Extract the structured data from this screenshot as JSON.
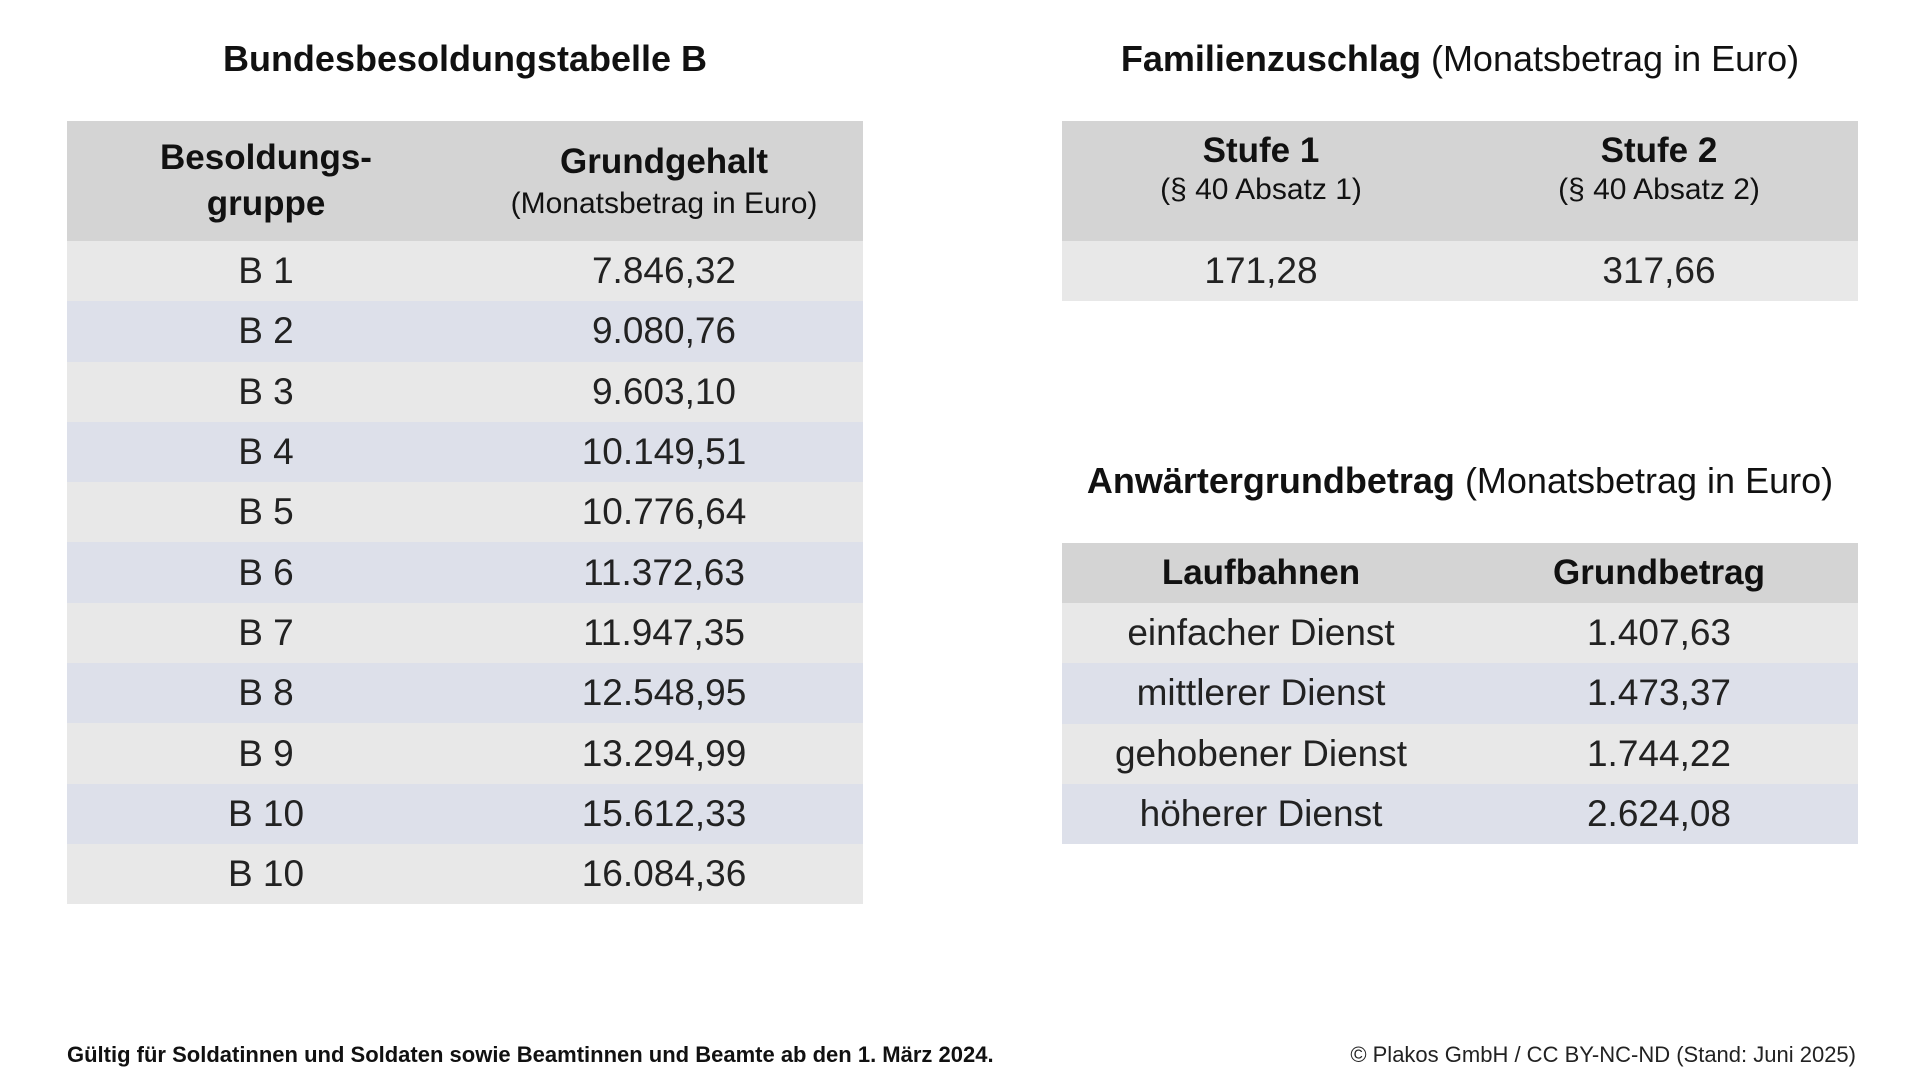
{
  "besoldung": {
    "title": "Bundesbesoldungstabelle B",
    "header_col1": "Besoldungs-\ngruppe",
    "header_col2": "Grundgehalt",
    "header_col2_sub": "(Monatsbetrag in Euro)",
    "rows": [
      {
        "group": "B 1",
        "value": "7.846,32"
      },
      {
        "group": "B 2",
        "value": "9.080,76"
      },
      {
        "group": "B 3",
        "value": "9.603,10"
      },
      {
        "group": "B 4",
        "value": "10.149,51"
      },
      {
        "group": "B 5",
        "value": "10.776,64"
      },
      {
        "group": "B 6",
        "value": "11.372,63"
      },
      {
        "group": "B 7",
        "value": "11.947,35"
      },
      {
        "group": "B 8",
        "value": "12.548,95"
      },
      {
        "group": "B 9",
        "value": "13.294,99"
      },
      {
        "group": "B 10",
        "value": "15.612,33"
      },
      {
        "group": "B 10",
        "value": "16.084,36"
      }
    ]
  },
  "familienzuschlag": {
    "title_bold": "Familienzuschlag",
    "title_light": "(Monatsbetrag in Euro)",
    "col1": "Stufe 1",
    "col1_sub": "(§ 40 Absatz 1)",
    "col2": "Stufe 2",
    "col2_sub": "(§ 40 Absatz 2)",
    "value1": "171,28",
    "value2": "317,66"
  },
  "anwaerter": {
    "title_bold": "Anwärtergrundbetrag",
    "title_light": "(Monatsbetrag in Euro)",
    "col1": "Laufbahnen",
    "col2": "Grundbetrag",
    "rows": [
      {
        "laufbahn": "einfacher Dienst",
        "betrag": "1.407,63"
      },
      {
        "laufbahn": "mittlerer Dienst",
        "betrag": "1.473,37"
      },
      {
        "laufbahn": "gehobener Dienst",
        "betrag": "1.744,22"
      },
      {
        "laufbahn": "höherer Dienst",
        "betrag": "2.624,08"
      }
    ]
  },
  "footer": {
    "note": "Gültig für Soldatinnen und Soldaten sowie Beamtinnen und Beamte ab den 1. März 2024.",
    "copyright": "© Plakos GmbH / CC BY-NC-ND (Stand: Juni 2025)"
  },
  "colors": {
    "header_bg": "#d4d4d4",
    "row_light": "#e8e8e8",
    "row_blue": "#dde0ea"
  }
}
